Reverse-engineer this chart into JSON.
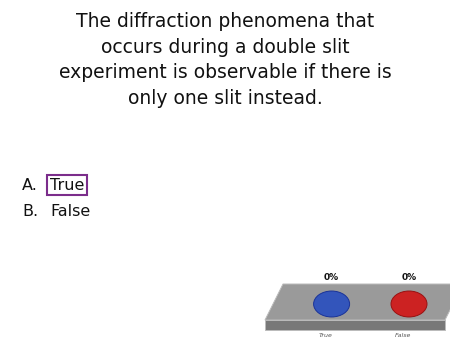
{
  "bg_color": "#ffffff",
  "question_text": "The diffraction phenomena that\noccurs during a double slit\nexperiment is observable if there is\nonly one slit instead.",
  "question_fontsize": 13.5,
  "option_fontsize": 11.5,
  "box_color": "#7B2D8B",
  "true_label": "True",
  "false_label": "False",
  "pct_text": "0%",
  "platform_color": "#9a9a9a",
  "platform_dark": "#787878",
  "circle_blue": "#3355bb",
  "circle_red": "#cc2222"
}
